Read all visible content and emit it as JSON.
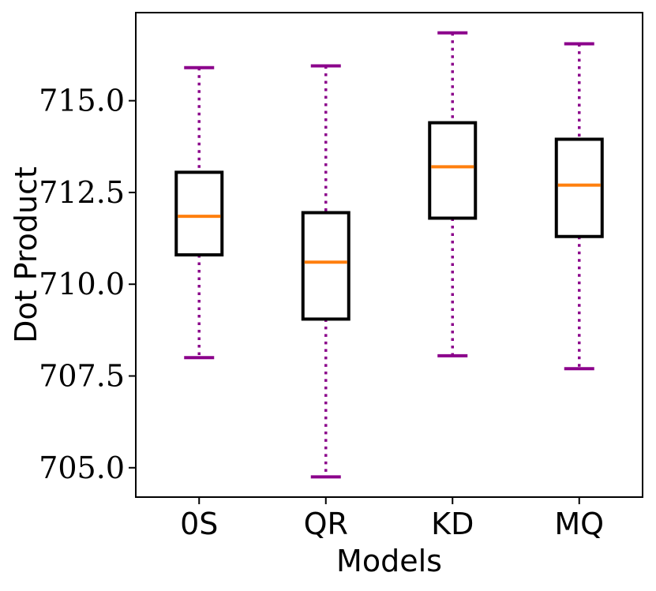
{
  "chart_data": {
    "type": "box",
    "title": "",
    "xlabel": "Models",
    "ylabel": "Dot Product",
    "ylim": [
      704.2,
      717.4
    ],
    "yticks": [
      705.0,
      707.5,
      710.0,
      712.5,
      715.0
    ],
    "ytick_labels": [
      "705.0",
      "707.5",
      "710.0",
      "712.5",
      "715.0"
    ],
    "categories": [
      "0S",
      "QR",
      "KD",
      "MQ"
    ],
    "boxes": [
      {
        "label": "0S",
        "whisker_low": 708.0,
        "q1": 710.8,
        "median": 711.85,
        "q3": 713.05,
        "whisker_high": 715.9
      },
      {
        "label": "QR",
        "whisker_low": 704.75,
        "q1": 709.05,
        "median": 710.6,
        "q3": 711.95,
        "whisker_high": 715.95
      },
      {
        "label": "KD",
        "whisker_low": 708.05,
        "q1": 711.8,
        "median": 713.2,
        "q3": 714.4,
        "whisker_high": 716.85
      },
      {
        "label": "MQ",
        "whisker_low": 707.7,
        "q1": 711.3,
        "median": 712.7,
        "q3": 713.95,
        "whisker_high": 716.55
      }
    ],
    "colors": {
      "box": "#000000",
      "median": "#ff7f0e",
      "whisker": "#8b008b"
    },
    "grid": false
  }
}
